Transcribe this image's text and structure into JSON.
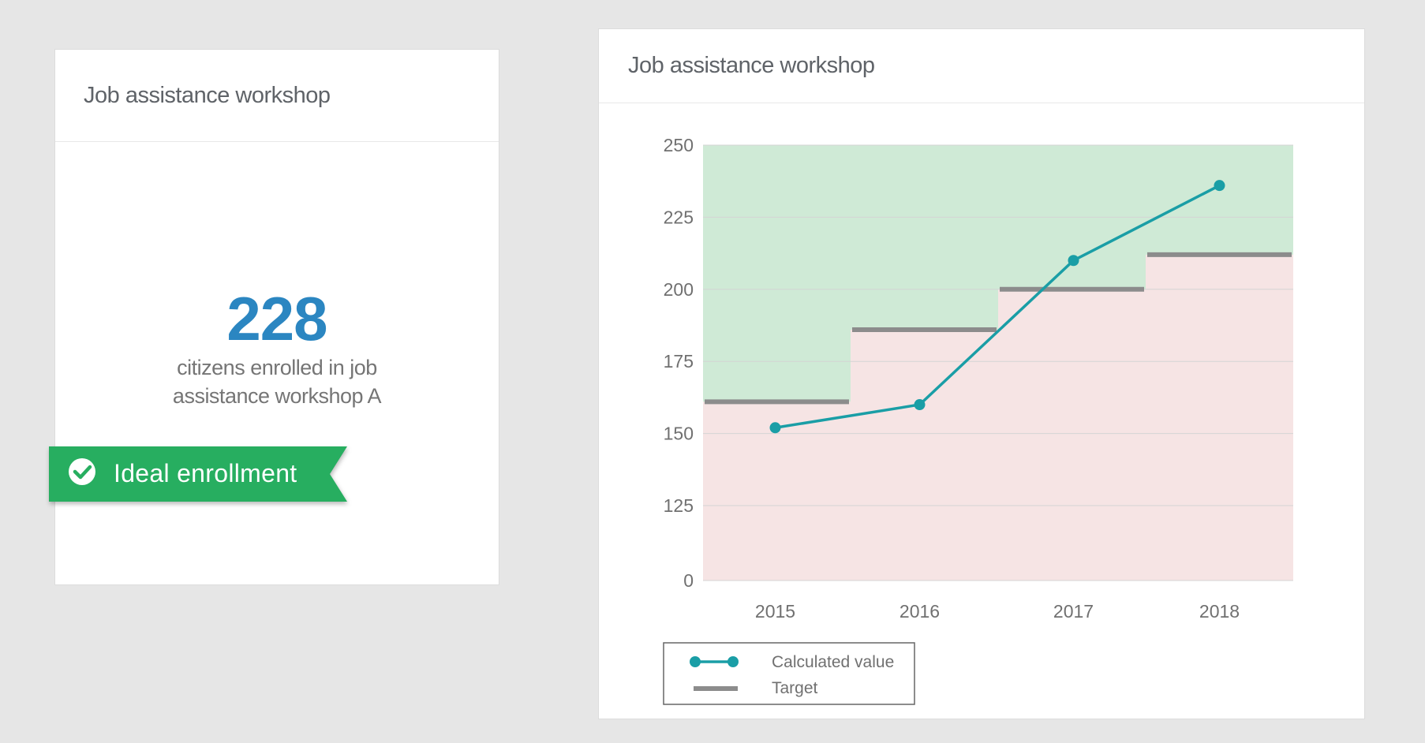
{
  "kpi_card": {
    "title": "Job assistance workshop",
    "value": "228",
    "caption": "citizens enrolled in job assistance workshop A",
    "status": {
      "label": "Ideal enrollment",
      "icon": "check-circle-icon",
      "color": "#27ae60"
    }
  },
  "chart_card": {
    "title": "Job assistance workshop"
  },
  "colors": {
    "above_target": "#cfead6",
    "below_target": "#f6e4e4",
    "line": "#1a9ea6",
    "target": "#8c8c8c",
    "kpi_value": "#2b86c1"
  },
  "chart_data": {
    "type": "line",
    "categories": [
      "2015",
      "2016",
      "2017",
      "2018"
    ],
    "series": [
      {
        "name": "Calculated value",
        "values": [
          152,
          160,
          210,
          236
        ]
      },
      {
        "name": "Target",
        "values": [
          161,
          186,
          200,
          212
        ]
      }
    ],
    "yticks": [
      "0",
      "125",
      "150",
      "175",
      "200",
      "225",
      "250"
    ],
    "ylim": [
      0,
      250
    ],
    "axis_break": "0–110 compressed (0 tick directly below 125)",
    "grid": true,
    "legend": {
      "position": "bottom-left",
      "entries": [
        "Calculated value",
        "Target"
      ]
    }
  }
}
